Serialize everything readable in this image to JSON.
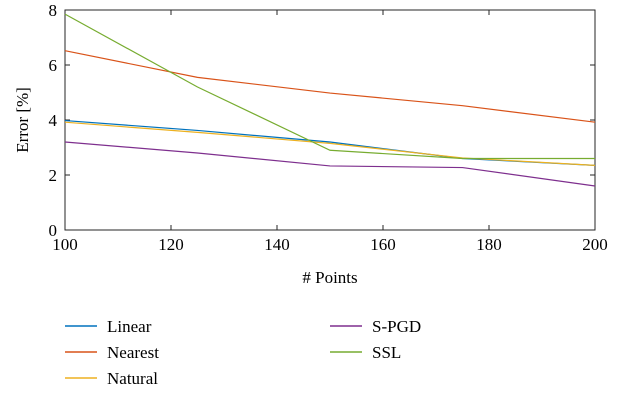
{
  "chart_data": {
    "type": "line",
    "title": "",
    "xlabel": "# Points",
    "ylabel": "Error [%]",
    "xlim": [
      100,
      200
    ],
    "ylim": [
      0,
      8
    ],
    "xticks": [
      100,
      120,
      140,
      160,
      180,
      200
    ],
    "yticks": [
      0,
      2,
      4,
      6,
      8
    ],
    "xtick_labels": [
      "100",
      "120",
      "140",
      "160",
      "180",
      "200"
    ],
    "ytick_labels": [
      "0",
      "2",
      "4",
      "6",
      "8"
    ],
    "grid": false,
    "legend_position": "bottom",
    "x": [
      100,
      125,
      150,
      175,
      200
    ],
    "series": [
      {
        "name": "Linear",
        "color": "#0072BD",
        "values": [
          3.98,
          3.62,
          3.2,
          2.6,
          2.35
        ]
      },
      {
        "name": "Nearest",
        "color": "#D95319",
        "values": [
          6.52,
          5.55,
          4.98,
          4.52,
          3.92
        ]
      },
      {
        "name": "Natural",
        "color": "#EDB120",
        "values": [
          3.92,
          3.55,
          3.15,
          2.62,
          2.35
        ]
      },
      {
        "name": "S-PGD",
        "color": "#7E2F8E",
        "values": [
          3.2,
          2.8,
          2.33,
          2.27,
          1.6
        ]
      },
      {
        "name": "SSL",
        "color": "#77AC30",
        "values": [
          7.85,
          5.2,
          2.9,
          2.6,
          2.6
        ]
      }
    ]
  }
}
